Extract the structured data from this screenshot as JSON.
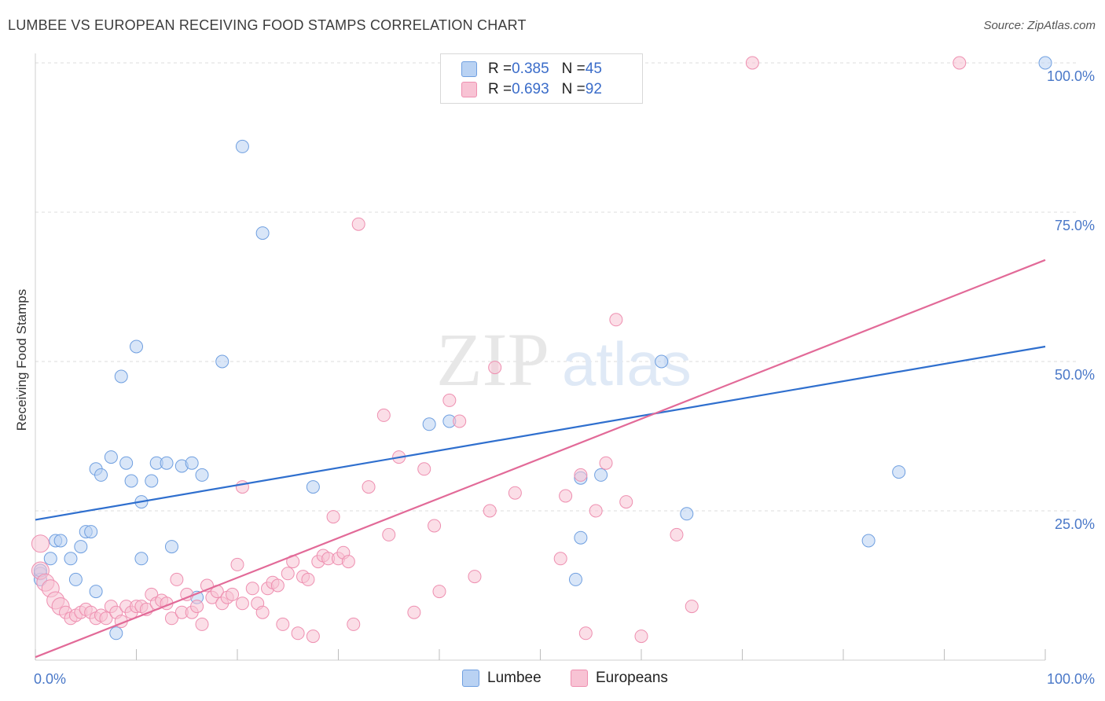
{
  "header": {
    "title": "LUMBEE VS EUROPEAN RECEIVING FOOD STAMPS CORRELATION CHART",
    "source": "Source: ZipAtlas.com"
  },
  "watermark": {
    "zip": "ZIP",
    "atlas": "atlas"
  },
  "legend": {
    "rows": [
      {
        "r_label": "R = ",
        "r_value": "0.385",
        "n_label": "N = ",
        "n_value": "45",
        "color": "#9ec0ee"
      },
      {
        "r_label": "R = ",
        "r_value": "0.693",
        "n_label": "N = ",
        "n_value": "92",
        "color": "#f4a8c0"
      }
    ]
  },
  "bottom_legend": [
    {
      "label": "Lumbee",
      "color": "#9ec0ee"
    },
    {
      "label": "Europeans",
      "color": "#f4a8c0"
    }
  ],
  "chart_data": {
    "type": "scatter",
    "title": "LUMBEE VS EUROPEAN RECEIVING FOOD STAMPS CORRELATION CHART",
    "ylabel": "Receiving Food Stamps",
    "xlabel": "",
    "xlim": [
      0,
      100
    ],
    "ylim": [
      0,
      100
    ],
    "x_tick_labels": [
      "0.0%",
      "100.0%"
    ],
    "y_tick_labels": [
      "25.0%",
      "50.0%",
      "75.0%",
      "100.0%"
    ],
    "y_ticks": [
      25,
      50,
      75,
      100
    ],
    "grid": true,
    "legend_placement": "top-center",
    "series": [
      {
        "name": "Lumbee",
        "color": "#6f9fe0",
        "fill": "#b9d2f3",
        "line_color": "#2f6fce",
        "trend": {
          "x": [
            0,
            100
          ],
          "y": [
            23.5,
            52.5
          ]
        },
        "points": [
          [
            0.5,
            14.5
          ],
          [
            0.5,
            13.5
          ],
          [
            1.5,
            17
          ],
          [
            2,
            20
          ],
          [
            2.5,
            20
          ],
          [
            3.5,
            17
          ],
          [
            4,
            13.5
          ],
          [
            4.5,
            19
          ],
          [
            5,
            21.5
          ],
          [
            5.5,
            21.5
          ],
          [
            6,
            11.5
          ],
          [
            6,
            32
          ],
          [
            6.5,
            31
          ],
          [
            7.5,
            34
          ],
          [
            8,
            4.5
          ],
          [
            8.5,
            47.5
          ],
          [
            9,
            33
          ],
          [
            9.5,
            30
          ],
          [
            10,
            52.5
          ],
          [
            10.5,
            26.5
          ],
          [
            10.5,
            17
          ],
          [
            11.5,
            30
          ],
          [
            12,
            33
          ],
          [
            13,
            33
          ],
          [
            13.5,
            19
          ],
          [
            14.5,
            32.5
          ],
          [
            15.5,
            33
          ],
          [
            16,
            10.5
          ],
          [
            16.5,
            31
          ],
          [
            18.5,
            50
          ],
          [
            20.5,
            86
          ],
          [
            22.5,
            71.5
          ],
          [
            27.5,
            29
          ],
          [
            39,
            39.5
          ],
          [
            41,
            40
          ],
          [
            53.5,
            13.5
          ],
          [
            54,
            30.5
          ],
          [
            54,
            20.5
          ],
          [
            56,
            31
          ],
          [
            62,
            50
          ],
          [
            64.5,
            24.5
          ],
          [
            82.5,
            20
          ],
          [
            85.5,
            31.5
          ],
          [
            100,
            100
          ],
          [
            0.5,
            15
          ]
        ]
      },
      {
        "name": "Europeans",
        "color": "#ee8fb0",
        "fill": "#f8c3d4",
        "line_color": "#e26a98",
        "trend": {
          "x": [
            0,
            100
          ],
          "y": [
            0.5,
            67
          ]
        },
        "points": [
          [
            0.5,
            19.5
          ],
          [
            0.5,
            15
          ],
          [
            1,
            13
          ],
          [
            1.5,
            12
          ],
          [
            2,
            10
          ],
          [
            2.5,
            9
          ],
          [
            3,
            8
          ],
          [
            3.5,
            7
          ],
          [
            4,
            7.5
          ],
          [
            4.5,
            8
          ],
          [
            5,
            8.5
          ],
          [
            5.5,
            8
          ],
          [
            6,
            7
          ],
          [
            6.5,
            7.5
          ],
          [
            7,
            7
          ],
          [
            7.5,
            9
          ],
          [
            8,
            8
          ],
          [
            8.5,
            6.5
          ],
          [
            9,
            9
          ],
          [
            9.5,
            8
          ],
          [
            10,
            9
          ],
          [
            10.5,
            9
          ],
          [
            11,
            8.5
          ],
          [
            11.5,
            11
          ],
          [
            12,
            9.5
          ],
          [
            12.5,
            10
          ],
          [
            13,
            9.5
          ],
          [
            13.5,
            7
          ],
          [
            14,
            13.5
          ],
          [
            14.5,
            8
          ],
          [
            15,
            11
          ],
          [
            15.5,
            8
          ],
          [
            16,
            9
          ],
          [
            16.5,
            6
          ],
          [
            17,
            12.5
          ],
          [
            17.5,
            10.5
          ],
          [
            18,
            11.5
          ],
          [
            18.5,
            9.5
          ],
          [
            19,
            10.5
          ],
          [
            19.5,
            11
          ],
          [
            20,
            16
          ],
          [
            20.5,
            9.5
          ],
          [
            20.5,
            29
          ],
          [
            21.5,
            12
          ],
          [
            22,
            9.5
          ],
          [
            22.5,
            8
          ],
          [
            23,
            12
          ],
          [
            23.5,
            13
          ],
          [
            24,
            12.5
          ],
          [
            24.5,
            6
          ],
          [
            25,
            14.5
          ],
          [
            25.5,
            16.5
          ],
          [
            26,
            4.5
          ],
          [
            26.5,
            14
          ],
          [
            27,
            13.5
          ],
          [
            27.5,
            4
          ],
          [
            28,
            16.5
          ],
          [
            28.5,
            17.5
          ],
          [
            29,
            17
          ],
          [
            29.5,
            24
          ],
          [
            30,
            17
          ],
          [
            30.5,
            18
          ],
          [
            31,
            16.5
          ],
          [
            31.5,
            6
          ],
          [
            32,
            73
          ],
          [
            33,
            29
          ],
          [
            34.5,
            41
          ],
          [
            35,
            21
          ],
          [
            36,
            34
          ],
          [
            37.5,
            8
          ],
          [
            38.5,
            32
          ],
          [
            39.5,
            22.5
          ],
          [
            40,
            11.5
          ],
          [
            41,
            43.5
          ],
          [
            42,
            40
          ],
          [
            43.5,
            14
          ],
          [
            45,
            25
          ],
          [
            45.5,
            49
          ],
          [
            47.5,
            28
          ],
          [
            52,
            17
          ],
          [
            52.5,
            27.5
          ],
          [
            54,
            31
          ],
          [
            54.5,
            4.5
          ],
          [
            55.5,
            25
          ],
          [
            56.5,
            33
          ],
          [
            57.5,
            57
          ],
          [
            58.5,
            26.5
          ],
          [
            60,
            4
          ],
          [
            63.5,
            21
          ],
          [
            65,
            9
          ],
          [
            71,
            100
          ],
          [
            91.5,
            100
          ]
        ]
      }
    ]
  }
}
